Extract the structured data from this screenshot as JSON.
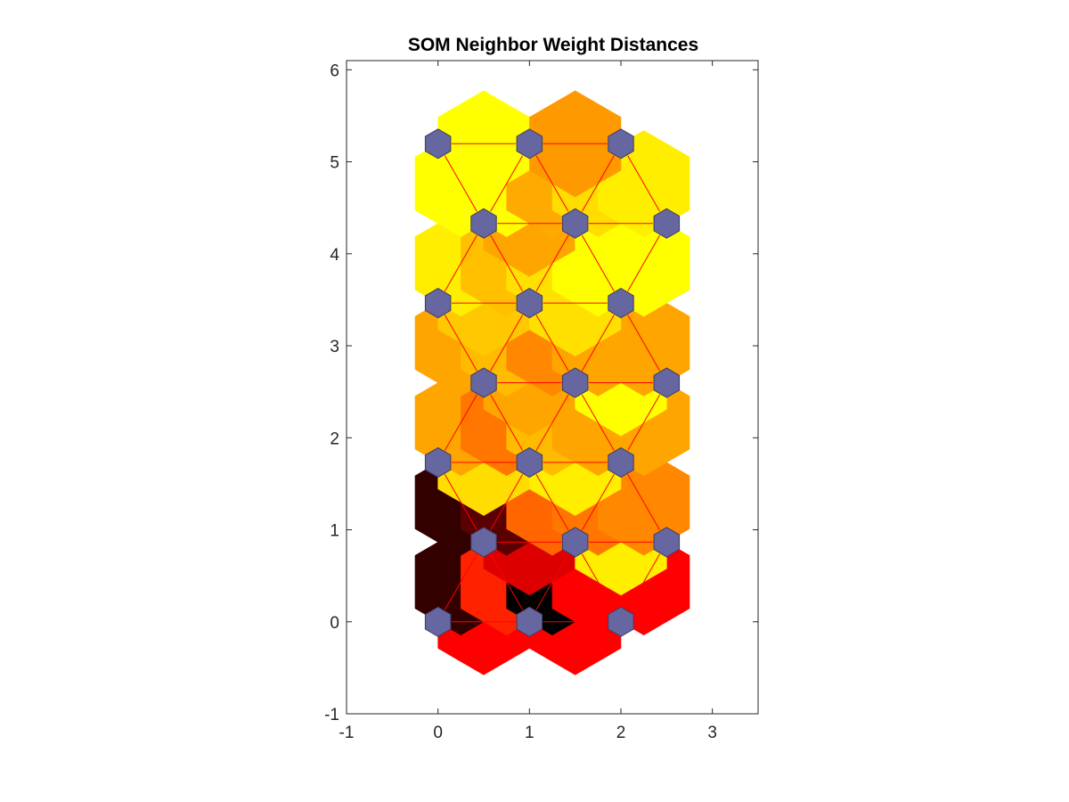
{
  "chart_data": {
    "type": "heatmap",
    "title": "SOM Neighbor Weight Distances",
    "xlabel": "",
    "ylabel": "",
    "xlim": [
      -1,
      3.5
    ],
    "ylim": [
      -1,
      6.1
    ],
    "x_ticks": [
      -1,
      0,
      1,
      2,
      3
    ],
    "y_ticks": [
      -1,
      0,
      1,
      2,
      3,
      4,
      5,
      6
    ],
    "x_tick_labels": [
      "-1",
      "0",
      "1",
      "2",
      "3"
    ],
    "y_tick_labels": [
      "-1",
      "0",
      "1",
      "2",
      "3",
      "4",
      "5",
      "6"
    ],
    "grid": false,
    "legend": "none",
    "colormap": "hot",
    "neuron_color": "#6666a0",
    "line_color": "#ff0000",
    "neurons": [
      [
        0,
        0
      ],
      [
        1,
        0
      ],
      [
        2,
        0
      ],
      [
        0.5,
        0.866
      ],
      [
        1.5,
        0.866
      ],
      [
        2.5,
        0.866
      ],
      [
        0,
        1.732
      ],
      [
        1,
        1.732
      ],
      [
        2,
        1.732
      ],
      [
        0.5,
        2.598
      ],
      [
        1.5,
        2.598
      ],
      [
        2.5,
        2.598
      ],
      [
        0,
        3.464
      ],
      [
        1,
        3.464
      ],
      [
        2,
        3.464
      ],
      [
        0.5,
        4.33
      ],
      [
        1.5,
        4.33
      ],
      [
        2.5,
        4.33
      ],
      [
        0,
        5.196
      ],
      [
        1,
        5.196
      ],
      [
        2,
        5.196
      ]
    ],
    "connections": [
      {
        "from": 0,
        "to": 1,
        "color": "#ff0000"
      },
      {
        "from": 1,
        "to": 2,
        "color": "#ff0000"
      },
      {
        "from": 0,
        "to": 3,
        "color": "#330000"
      },
      {
        "from": 1,
        "to": 3,
        "color": "#ff2200"
      },
      {
        "from": 1,
        "to": 4,
        "color": "#000000"
      },
      {
        "from": 2,
        "to": 4,
        "color": "#ff0000"
      },
      {
        "from": 2,
        "to": 5,
        "color": "#ff0000"
      },
      {
        "from": 3,
        "to": 4,
        "color": "#dd0000"
      },
      {
        "from": 4,
        "to": 5,
        "color": "#ffee00"
      },
      {
        "from": 3,
        "to": 6,
        "color": "#330000"
      },
      {
        "from": 3,
        "to": 7,
        "color": "#5a0000"
      },
      {
        "from": 4,
        "to": 7,
        "color": "#ff6600"
      },
      {
        "from": 4,
        "to": 8,
        "color": "#ff7700"
      },
      {
        "from": 5,
        "to": 8,
        "color": "#ff8800"
      },
      {
        "from": 6,
        "to": 7,
        "color": "#ffdd00"
      },
      {
        "from": 7,
        "to": 8,
        "color": "#ffee00"
      },
      {
        "from": 6,
        "to": 9,
        "color": "#ffa500"
      },
      {
        "from": 7,
        "to": 9,
        "color": "#ff7700"
      },
      {
        "from": 7,
        "to": 10,
        "color": "#ffbb00"
      },
      {
        "from": 8,
        "to": 10,
        "color": "#ffa500"
      },
      {
        "from": 8,
        "to": 11,
        "color": "#ffa500"
      },
      {
        "from": 9,
        "to": 10,
        "color": "#ffa500"
      },
      {
        "from": 10,
        "to": 11,
        "color": "#ffff00"
      },
      {
        "from": 9,
        "to": 12,
        "color": "#ffa500"
      },
      {
        "from": 9,
        "to": 13,
        "color": "#ffbb00"
      },
      {
        "from": 10,
        "to": 13,
        "color": "#ff8800"
      },
      {
        "from": 10,
        "to": 14,
        "color": "#ffa500"
      },
      {
        "from": 11,
        "to": 14,
        "color": "#ffa500"
      },
      {
        "from": 12,
        "to": 13,
        "color": "#ffc800"
      },
      {
        "from": 13,
        "to": 14,
        "color": "#ffe000"
      },
      {
        "from": 12,
        "to": 15,
        "color": "#ffee00"
      },
      {
        "from": 13,
        "to": 15,
        "color": "#ffc000"
      },
      {
        "from": 13,
        "to": 16,
        "color": "#ffe000"
      },
      {
        "from": 14,
        "to": 16,
        "color": "#ffff00"
      },
      {
        "from": 14,
        "to": 17,
        "color": "#ffff00"
      },
      {
        "from": 15,
        "to": 16,
        "color": "#ffa500"
      },
      {
        "from": 16,
        "to": 17,
        "color": "#ffff00"
      },
      {
        "from": 15,
        "to": 18,
        "color": "#ffff00"
      },
      {
        "from": 15,
        "to": 19,
        "color": "#ffff00"
      },
      {
        "from": 16,
        "to": 19,
        "color": "#ffaa00"
      },
      {
        "from": 16,
        "to": 20,
        "color": "#ffdd00"
      },
      {
        "from": 17,
        "to": 20,
        "color": "#ffee00"
      },
      {
        "from": 18,
        "to": 19,
        "color": "#ffff00"
      },
      {
        "from": 19,
        "to": 20,
        "color": "#ff9900"
      }
    ]
  }
}
